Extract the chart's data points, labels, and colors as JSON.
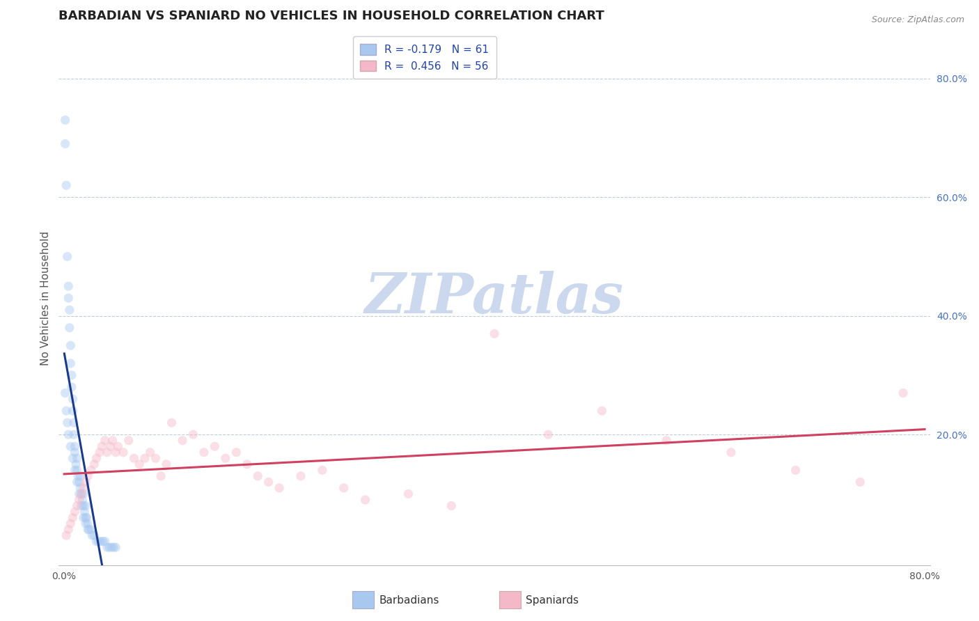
{
  "title": "BARBADIAN VS SPANIARD NO VEHICLES IN HOUSEHOLD CORRELATION CHART",
  "source": "Source: ZipAtlas.com",
  "ylabel": "No Vehicles in Household",
  "xlim": [
    -0.005,
    0.805
  ],
  "ylim": [
    -0.02,
    0.88
  ],
  "y_ticks_right": [
    0.2,
    0.4,
    0.6,
    0.8
  ],
  "barbadian_color": "#a8c8f0",
  "spaniard_color": "#f5b8c8",
  "barbadian_line_color": "#1a3a8a",
  "spaniard_line_color": "#d04060",
  "barbadian_line_dashed_color": "#8899cc",
  "legend_text_color": "#2244aa",
  "R_barbadian": -0.179,
  "N_barbadian": 61,
  "R_spaniard": 0.456,
  "N_spaniard": 56,
  "watermark": "ZIPatlas",
  "watermark_color": "#ccd8ee",
  "background_color": "#ffffff",
  "grid_color": "#c0ccd8",
  "barbadian_x": [
    0.001,
    0.001,
    0.002,
    0.003,
    0.004,
    0.004,
    0.005,
    0.005,
    0.006,
    0.006,
    0.007,
    0.007,
    0.008,
    0.008,
    0.009,
    0.009,
    0.01,
    0.01,
    0.011,
    0.012,
    0.012,
    0.013,
    0.014,
    0.015,
    0.015,
    0.016,
    0.017,
    0.018,
    0.018,
    0.019,
    0.02,
    0.02,
    0.021,
    0.022,
    0.023,
    0.025,
    0.026,
    0.028,
    0.03,
    0.032,
    0.034,
    0.036,
    0.038,
    0.04,
    0.042,
    0.044,
    0.046,
    0.048,
    0.001,
    0.002,
    0.003,
    0.004,
    0.006,
    0.008,
    0.01,
    0.012,
    0.014,
    0.016,
    0.018,
    0.02,
    0.022
  ],
  "barbadian_y": [
    0.73,
    0.69,
    0.62,
    0.5,
    0.45,
    0.43,
    0.41,
    0.38,
    0.35,
    0.32,
    0.3,
    0.28,
    0.26,
    0.24,
    0.22,
    0.2,
    0.18,
    0.17,
    0.15,
    0.14,
    0.16,
    0.13,
    0.12,
    0.11,
    0.13,
    0.1,
    0.09,
    0.08,
    0.1,
    0.07,
    0.06,
    0.08,
    0.06,
    0.05,
    0.04,
    0.04,
    0.03,
    0.03,
    0.02,
    0.02,
    0.02,
    0.02,
    0.02,
    0.01,
    0.01,
    0.01,
    0.01,
    0.01,
    0.27,
    0.24,
    0.22,
    0.2,
    0.18,
    0.16,
    0.14,
    0.12,
    0.1,
    0.08,
    0.06,
    0.05,
    0.04
  ],
  "spaniard_x": [
    0.002,
    0.004,
    0.006,
    0.008,
    0.01,
    0.012,
    0.014,
    0.016,
    0.018,
    0.02,
    0.022,
    0.025,
    0.028,
    0.03,
    0.033,
    0.035,
    0.038,
    0.04,
    0.043,
    0.045,
    0.048,
    0.05,
    0.055,
    0.06,
    0.065,
    0.07,
    0.075,
    0.08,
    0.085,
    0.09,
    0.095,
    0.1,
    0.11,
    0.12,
    0.13,
    0.14,
    0.15,
    0.16,
    0.17,
    0.18,
    0.19,
    0.2,
    0.22,
    0.24,
    0.26,
    0.28,
    0.32,
    0.36,
    0.4,
    0.45,
    0.5,
    0.56,
    0.62,
    0.68,
    0.74,
    0.78
  ],
  "spaniard_y": [
    0.03,
    0.04,
    0.05,
    0.06,
    0.07,
    0.08,
    0.09,
    0.1,
    0.11,
    0.12,
    0.13,
    0.14,
    0.15,
    0.16,
    0.17,
    0.18,
    0.19,
    0.17,
    0.18,
    0.19,
    0.17,
    0.18,
    0.17,
    0.19,
    0.16,
    0.15,
    0.16,
    0.17,
    0.16,
    0.13,
    0.15,
    0.22,
    0.19,
    0.2,
    0.17,
    0.18,
    0.16,
    0.17,
    0.15,
    0.13,
    0.12,
    0.11,
    0.13,
    0.14,
    0.11,
    0.09,
    0.1,
    0.08,
    0.37,
    0.2,
    0.24,
    0.19,
    0.17,
    0.14,
    0.12,
    0.27
  ],
  "title_fontsize": 13,
  "axis_label_fontsize": 11,
  "tick_fontsize": 10,
  "legend_fontsize": 11,
  "marker_size": 90,
  "marker_alpha": 0.45,
  "line_width": 2.2
}
